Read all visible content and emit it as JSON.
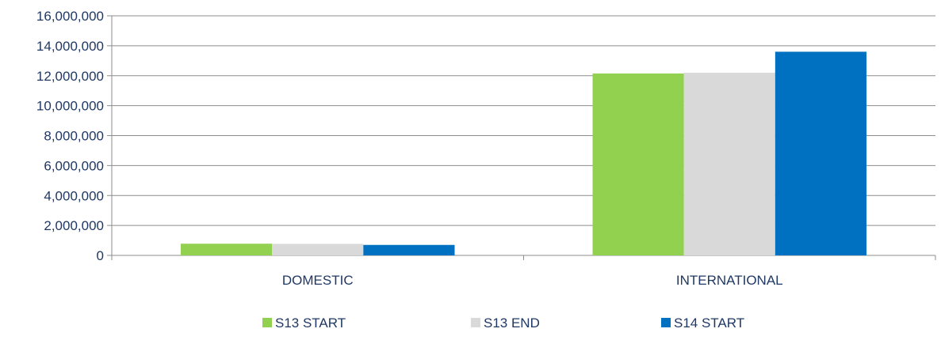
{
  "chart_data": {
    "type": "bar",
    "title": "",
    "xlabel": "",
    "ylabel": "",
    "categories": [
      "DOMESTIC",
      "INTERNATIONAL"
    ],
    "series": [
      {
        "name": "S13 START",
        "values": [
          780000,
          12150000
        ],
        "color": "#92d050"
      },
      {
        "name": "S13 END",
        "values": [
          770000,
          12200000
        ],
        "color": "#d9d9d9"
      },
      {
        "name": "S14 START",
        "values": [
          700000,
          13600000
        ],
        "color": "#0070c0"
      }
    ],
    "ylim": [
      0,
      16000000
    ],
    "yticks": [
      0,
      2000000,
      4000000,
      6000000,
      8000000,
      10000000,
      12000000,
      14000000,
      16000000
    ],
    "ytick_labels": [
      "0",
      "2,000,000",
      "4,000,000",
      "6,000,000",
      "8,000,000",
      "10,000,000",
      "12,000,000",
      "14,000,000",
      "16,000,000"
    ],
    "grid": true,
    "legend_position": "bottom"
  }
}
